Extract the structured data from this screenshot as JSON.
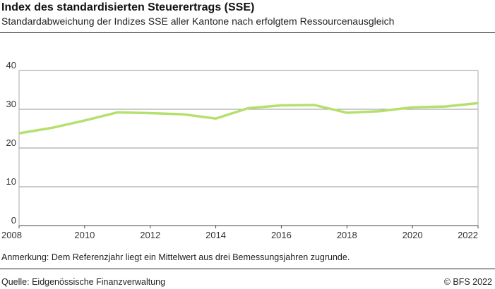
{
  "header": {
    "title": "Index des standardisierten Steuerertrags (SSE)",
    "subtitle": "Standardabweichung der Indizes SSE aller Kantone nach erfolgtem Ressourcenausgleich"
  },
  "footer": {
    "note": "Anmerkung: Dem Referenzjahr liegt ein Mittelwert aus drei Bemessungsjahren zugrunde.",
    "source": "Quelle: Eidgenössische Finanzverwaltung",
    "copyright": "© BFS 2022"
  },
  "chart_data": {
    "type": "line",
    "x": [
      2008,
      2009,
      2010,
      2011,
      2012,
      2013,
      2014,
      2015,
      2016,
      2017,
      2018,
      2019,
      2020,
      2021,
      2022
    ],
    "series": [
      {
        "values": [
          23.8,
          25.2,
          27.1,
          29.2,
          29.0,
          28.7,
          27.6,
          30.3,
          31.0,
          31.1,
          29.1,
          29.5,
          30.5,
          30.7,
          31.6
        ],
        "color": "#b5e06e"
      }
    ],
    "xlim": [
      2008,
      2022
    ],
    "ylim": [
      0,
      40
    ],
    "xticks": [
      "2008",
      "2010",
      "2012",
      "2014",
      "2016",
      "2018",
      "2020",
      "2022"
    ],
    "yticks": [
      "0",
      "10",
      "20",
      "30",
      "40"
    ],
    "grid": "horizontal",
    "legend": "none"
  }
}
